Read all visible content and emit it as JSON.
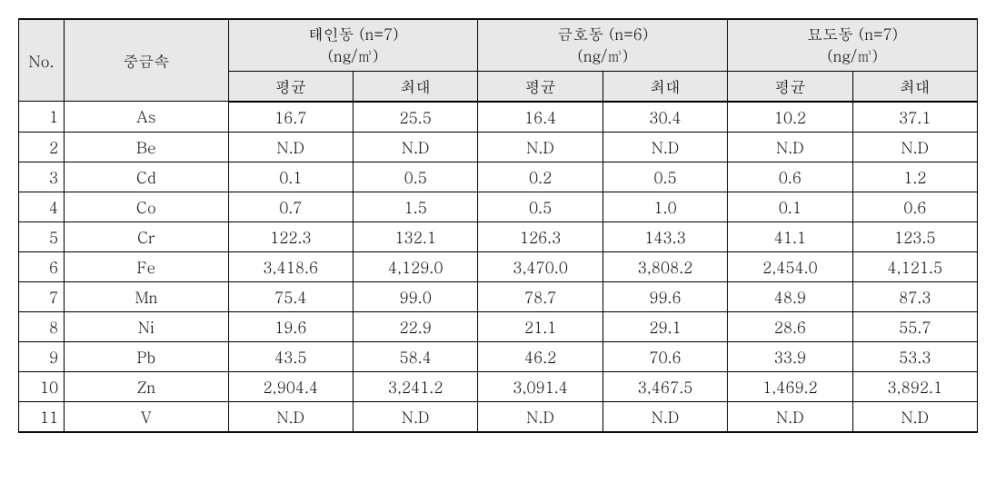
{
  "table": {
    "header": {
      "no": "No.",
      "metal": "중금속",
      "groups": [
        {
          "title": "태인동 (n=7)",
          "unit": "(ng/㎥)",
          "avg": "평균",
          "max": "최대"
        },
        {
          "title": "금호동 (n=6)",
          "unit": "(ng/㎥)",
          "avg": "평균",
          "max": "최대"
        },
        {
          "title": "묘도동 (n=7)",
          "unit": "(ng/㎥)",
          "avg": "평균",
          "max": "최대"
        }
      ]
    },
    "rows": [
      {
        "no": "1",
        "metal": "As",
        "v": [
          "16.7",
          "25.5",
          "16.4",
          "30.4",
          "10.2",
          "37.1"
        ]
      },
      {
        "no": "2",
        "metal": "Be",
        "v": [
          "N.D",
          "N.D",
          "N.D",
          "N.D",
          "N.D",
          "N.D"
        ]
      },
      {
        "no": "3",
        "metal": "Cd",
        "v": [
          "0.1",
          "0.5",
          "0.2",
          "0.5",
          "0.6",
          "1.2"
        ]
      },
      {
        "no": "4",
        "metal": "Co",
        "v": [
          "0.7",
          "1.5",
          "0.5",
          "1.0",
          "0.1",
          "0.6"
        ]
      },
      {
        "no": "5",
        "metal": "Cr",
        "v": [
          "122.3",
          "132.1",
          "126.3",
          "143.3",
          "41.1",
          "123.5"
        ]
      },
      {
        "no": "6",
        "metal": "Fe",
        "v": [
          "3,418.6",
          "4,129.0",
          "3,470.0",
          "3,808.2",
          "2,454.0",
          "4,121.5"
        ]
      },
      {
        "no": "7",
        "metal": "Mn",
        "v": [
          "75.4",
          "99.0",
          "78.7",
          "99.6",
          "48.9",
          "87.3"
        ]
      },
      {
        "no": "8",
        "metal": "Ni",
        "v": [
          "19.6",
          "22.9",
          "21.1",
          "29.1",
          "28.6",
          "55.7"
        ]
      },
      {
        "no": "9",
        "metal": "Pb",
        "v": [
          "43.5",
          "58.4",
          "46.2",
          "70.6",
          "33.9",
          "53.3"
        ]
      },
      {
        "no": "10",
        "metal": "Zn",
        "v": [
          "2,904.4",
          "3,241.2",
          "3,091.4",
          "3,467.5",
          "1,469.2",
          "3,892.1"
        ]
      },
      {
        "no": "11",
        "metal": "V",
        "v": [
          "N.D",
          "N.D",
          "N.D",
          "N.D",
          "N.D",
          "N.D"
        ]
      }
    ],
    "style": {
      "header_bg": "#e8e8e8",
      "border_color": "#000000",
      "font_size": 17
    }
  }
}
